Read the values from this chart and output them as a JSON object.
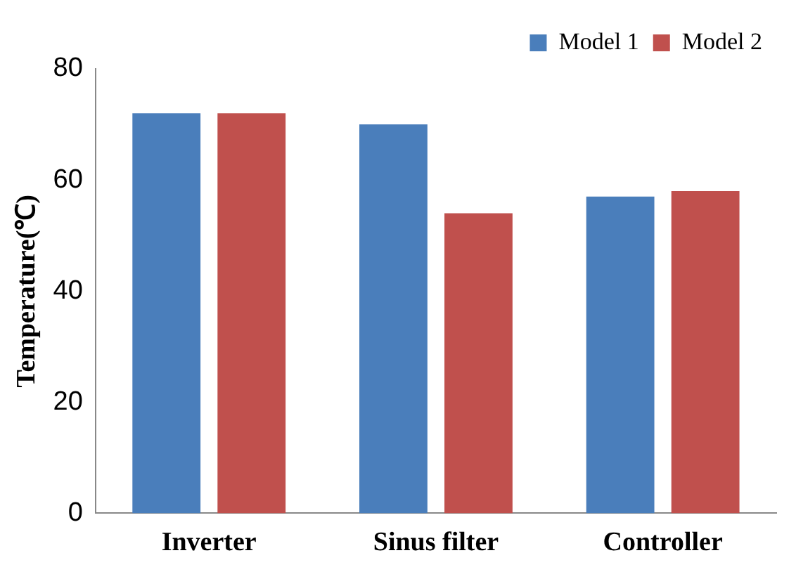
{
  "chart_data": {
    "type": "bar",
    "ylabel": "Temperature(℃)",
    "categories": [
      "Inverter",
      "Sinus filter",
      "Controller"
    ],
    "series": [
      {
        "name": "Model 1",
        "color": "#4a7ebb",
        "values": [
          72,
          70,
          57
        ]
      },
      {
        "name": "Model 2",
        "color": "#c0504d",
        "values": [
          72,
          54,
          58
        ]
      }
    ],
    "ylim": [
      0,
      80
    ],
    "yticks": [
      0,
      20,
      40,
      60,
      80
    ],
    "grid": false,
    "legend": "top right"
  }
}
